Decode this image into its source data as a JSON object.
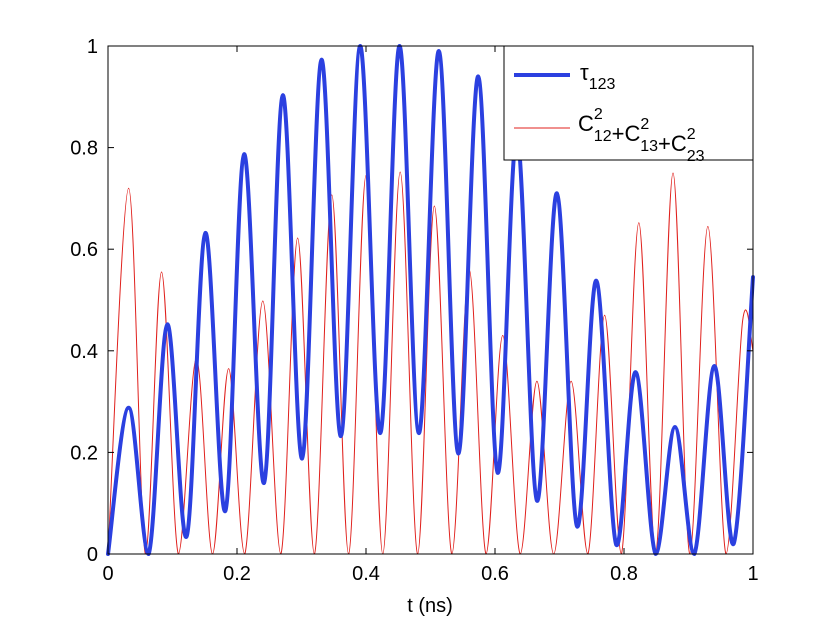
{
  "chart_data": {
    "type": "line",
    "title": "",
    "xlabel": "t (ns)",
    "ylabel": "",
    "xlim": [
      0,
      1
    ],
    "ylim": [
      0,
      1
    ],
    "xticks": [
      0,
      0.2,
      0.4,
      0.6,
      0.8,
      1
    ],
    "xtick_labels": [
      "0",
      "0.2",
      "0.4",
      "0.6",
      "0.8",
      "1"
    ],
    "yticks": [
      0,
      0.2,
      0.4,
      0.6,
      0.8,
      1
    ],
    "ytick_labels": [
      "0",
      "0.2",
      "0.4",
      "0.6",
      "0.8",
      "1"
    ],
    "grid": false,
    "legend_position": "top-right",
    "series": [
      {
        "name": "τ123",
        "legend": {
          "main": "τ",
          "sub": "123"
        },
        "color": "#2b40e0",
        "line_style": "thick",
        "x": [
          0,
          0.032,
          0.063,
          0.092,
          0.122,
          0.151,
          0.182,
          0.211,
          0.242,
          0.271,
          0.301,
          0.331,
          0.361,
          0.391,
          0.422,
          0.452,
          0.482,
          0.513,
          0.543,
          0.574,
          0.604,
          0.634,
          0.665,
          0.696,
          0.727,
          0.757,
          0.788,
          0.818,
          0.849,
          0.879,
          0.909,
          0.94,
          0.97,
          1.0
        ],
        "values": [
          0.0,
          0.288,
          0.0,
          0.452,
          0.035,
          0.632,
          0.085,
          0.787,
          0.14,
          0.903,
          0.188,
          0.973,
          0.232,
          1.0,
          0.238,
          1.0,
          0.238,
          0.99,
          0.198,
          0.94,
          0.16,
          0.825,
          0.105,
          0.71,
          0.055,
          0.538,
          0.018,
          0.358,
          0.0,
          0.25,
          0.0,
          0.37,
          0.02,
          0.545
        ]
      },
      {
        "name": "C12²+C13²+C23²",
        "legend": {
          "terms": [
            {
              "base": "C",
              "sup": "2",
              "sub": "12"
            },
            {
              "base": "C",
              "sup": "2",
              "sub": "13"
            },
            {
              "base": "C",
              "sup": "2",
              "sub": "23"
            }
          ],
          "sep": "+"
        },
        "color": "#e0201c",
        "line_style": "thin",
        "x": [
          0,
          0.032,
          0.058,
          0.083,
          0.109,
          0.137,
          0.162,
          0.187,
          0.212,
          0.24,
          0.268,
          0.294,
          0.32,
          0.347,
          0.373,
          0.4,
          0.426,
          0.453,
          0.48,
          0.506,
          0.533,
          0.56,
          0.586,
          0.612,
          0.639,
          0.665,
          0.691,
          0.718,
          0.744,
          0.77,
          0.796,
          0.823,
          0.849,
          0.876,
          0.902,
          0.93,
          0.958,
          0.984,
          1.0
        ],
        "values": [
          0.0,
          0.72,
          0.0,
          0.555,
          0.0,
          0.385,
          0.0,
          0.365,
          0.0,
          0.498,
          0.0,
          0.622,
          0.0,
          0.707,
          0.0,
          0.745,
          0.0,
          0.752,
          0.0,
          0.685,
          0.0,
          0.56,
          0.0,
          0.43,
          0.0,
          0.34,
          0.0,
          0.34,
          0.0,
          0.47,
          0.0,
          0.652,
          0.0,
          0.75,
          0.0,
          0.645,
          0.0,
          0.46,
          0.4
        ]
      }
    ]
  }
}
